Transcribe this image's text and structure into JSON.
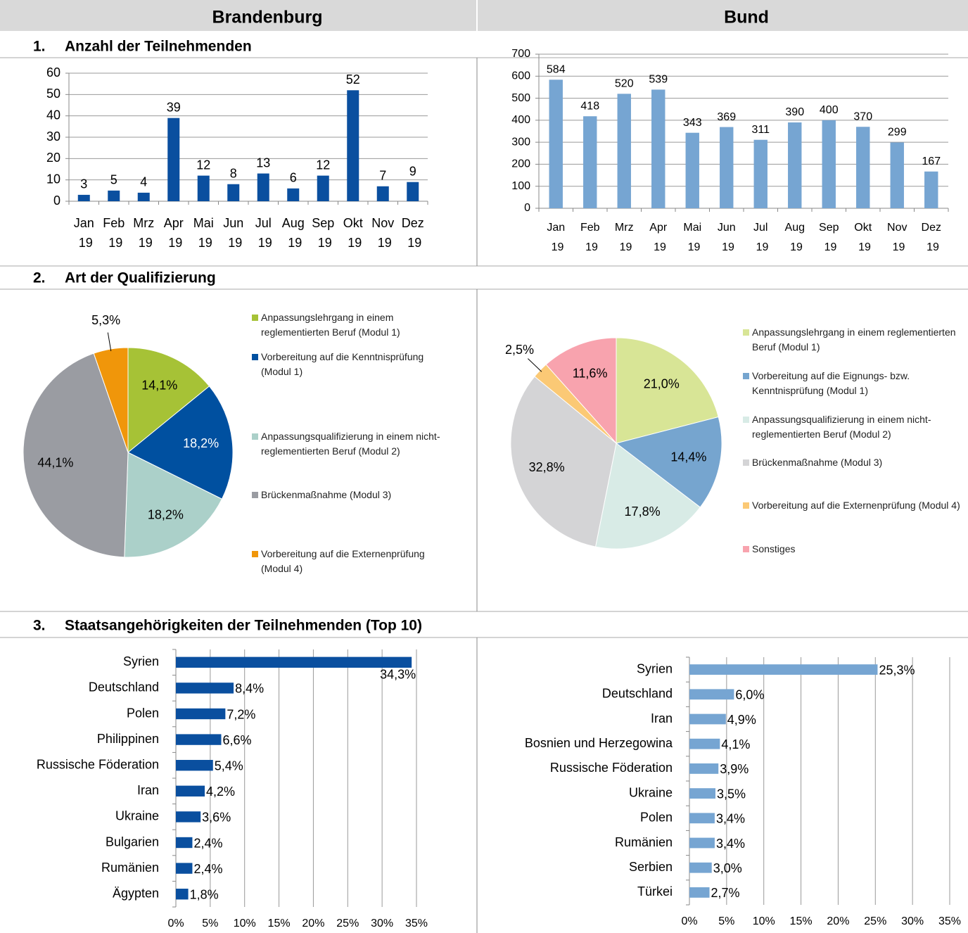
{
  "columns": [
    "Brandenburg",
    "Bund"
  ],
  "sections": [
    {
      "number": "1.",
      "title": "Anzahl der Teilnehmenden"
    },
    {
      "number": "2.",
      "title": "Art der Qualifizierung"
    },
    {
      "number": "3.",
      "title": "Staatsangehörigkeiten der Teilnehmenden (Top 10)"
    }
  ],
  "chart_data": [
    {
      "type": "bar",
      "categories": [
        "Jan 19",
        "Feb 19",
        "Mrz 19",
        "Apr 19",
        "Mai 19",
        "Jun 19",
        "Jul 19",
        "Aug 19",
        "Sep 19",
        "Okt 19",
        "Nov 19",
        "Dez 19"
      ],
      "values": [
        3,
        5,
        4,
        39,
        12,
        8,
        13,
        6,
        12,
        52,
        7,
        9
      ],
      "color": "#0a4f9f",
      "ylim": [
        0,
        60
      ],
      "yticks": [
        0,
        10,
        20,
        30,
        40,
        50,
        60
      ],
      "grid": true
    },
    {
      "type": "bar",
      "categories": [
        "Jan 19",
        "Feb 19",
        "Mrz 19",
        "Apr 19",
        "Mai 19",
        "Jun 19",
        "Jul 19",
        "Aug 19",
        "Sep 19",
        "Okt 19",
        "Nov 19",
        "Dez 19"
      ],
      "values": [
        584,
        418,
        520,
        539,
        343,
        369,
        311,
        390,
        400,
        370,
        299,
        167
      ],
      "color": "#76a5d2",
      "ylim": [
        0,
        700
      ],
      "yticks": [
        0,
        100,
        200,
        300,
        400,
        500,
        600,
        700
      ],
      "grid": true
    },
    {
      "type": "pie",
      "categories": [
        "Anpassungslehrgang in einem reglementierten Beruf (Modul 1)",
        "Vorbereitung auf die Kenntnisprüfung (Modul 1)",
        "Anpassungsqualifizierung in einem nicht-reglementierten Beruf (Modul 2)",
        "Brückenmaßnahme (Modul 3)",
        "Vorbereitung auf die Externenprüfung (Modul 4)"
      ],
      "values": [
        14.1,
        18.2,
        18.2,
        44.1,
        5.3
      ],
      "value_labels": [
        "14,1%",
        "18,2%",
        "18,2%",
        "44,1%",
        "5,3%"
      ],
      "colors": [
        "#a6c236",
        "#0050a0",
        "#abd0c9",
        "#9a9ca2",
        "#f0960a"
      ]
    },
    {
      "type": "pie",
      "categories": [
        "Anpassungslehrgang in einem reglementierten Beruf (Modul 1)",
        "Vorbereitung auf die Eignungs- bzw. Kenntnisprüfung (Modul 1)",
        "Anpassungsqualifizierung in einem nicht-reglementierten Beruf (Modul 2)",
        "Brückenmaßnahme (Modul 3)",
        "Vorbereitung auf die Externenprüfung (Modul 4)",
        "Sonstiges"
      ],
      "values": [
        21.0,
        14.4,
        17.8,
        32.8,
        2.5,
        11.6
      ],
      "value_labels": [
        "21,0%",
        "14,4%",
        "17,8%",
        "32,8%",
        "2,5%",
        "11,6%"
      ],
      "colors": [
        "#d8e596",
        "#76a5cf",
        "#d8ebe6",
        "#d4d4d6",
        "#fbc975",
        "#f8a3ae"
      ]
    },
    {
      "type": "hbar",
      "categories": [
        "Syrien",
        "Deutschland",
        "Polen",
        "Philippinen",
        "Russische Föderation",
        "Iran",
        "Ukraine",
        "Bulgarien",
        "Rumänien",
        "Ägypten"
      ],
      "values": [
        34.3,
        8.4,
        7.2,
        6.6,
        5.4,
        4.2,
        3.6,
        2.4,
        2.4,
        1.8
      ],
      "value_labels": [
        "34,3%",
        "8,4%",
        "7,2%",
        "6,6%",
        "5,4%",
        "4,2%",
        "3,6%",
        "2,4%",
        "2,4%",
        "1,8%"
      ],
      "color": "#0a4f9f",
      "xlim": [
        0,
        35
      ],
      "xticks": [
        {
          "value": 0,
          "label": "0%"
        },
        {
          "value": 5,
          "label": "5%"
        },
        {
          "value": 10,
          "label": "10%"
        },
        {
          "value": 15,
          "label": "15%"
        },
        {
          "value": 20,
          "label": "20%"
        },
        {
          "value": 25,
          "label": "25%"
        },
        {
          "value": 30,
          "label": "30%"
        },
        {
          "value": 35,
          "label": "35%"
        }
      ],
      "grid": true
    },
    {
      "type": "hbar",
      "categories": [
        "Syrien",
        "Deutschland",
        "Iran",
        "Bosnien und Herzegowina",
        "Russische Föderation",
        "Ukraine",
        "Polen",
        "Rumänien",
        "Serbien",
        "Türkei"
      ],
      "values": [
        25.3,
        6.0,
        4.9,
        4.1,
        3.9,
        3.5,
        3.4,
        3.4,
        3.0,
        2.7
      ],
      "value_labels": [
        "25,3%",
        "6,0%",
        "4,9%",
        "4,1%",
        "3,9%",
        "3,5%",
        "3,4%",
        "3,4%",
        "3,0%",
        "2,7%"
      ],
      "color": "#76a5d2",
      "xlim": [
        0,
        35
      ],
      "xticks": [
        {
          "value": 0,
          "label": "0%"
        },
        {
          "value": 5,
          "label": "5%"
        },
        {
          "value": 10,
          "label": "10%"
        },
        {
          "value": 15,
          "label": "15%"
        },
        {
          "value": 20,
          "label": "20%"
        },
        {
          "value": 25,
          "label": "25%"
        },
        {
          "value": 30,
          "label": "30%"
        },
        {
          "value": 35,
          "label": "35%"
        }
      ],
      "grid": true
    }
  ]
}
